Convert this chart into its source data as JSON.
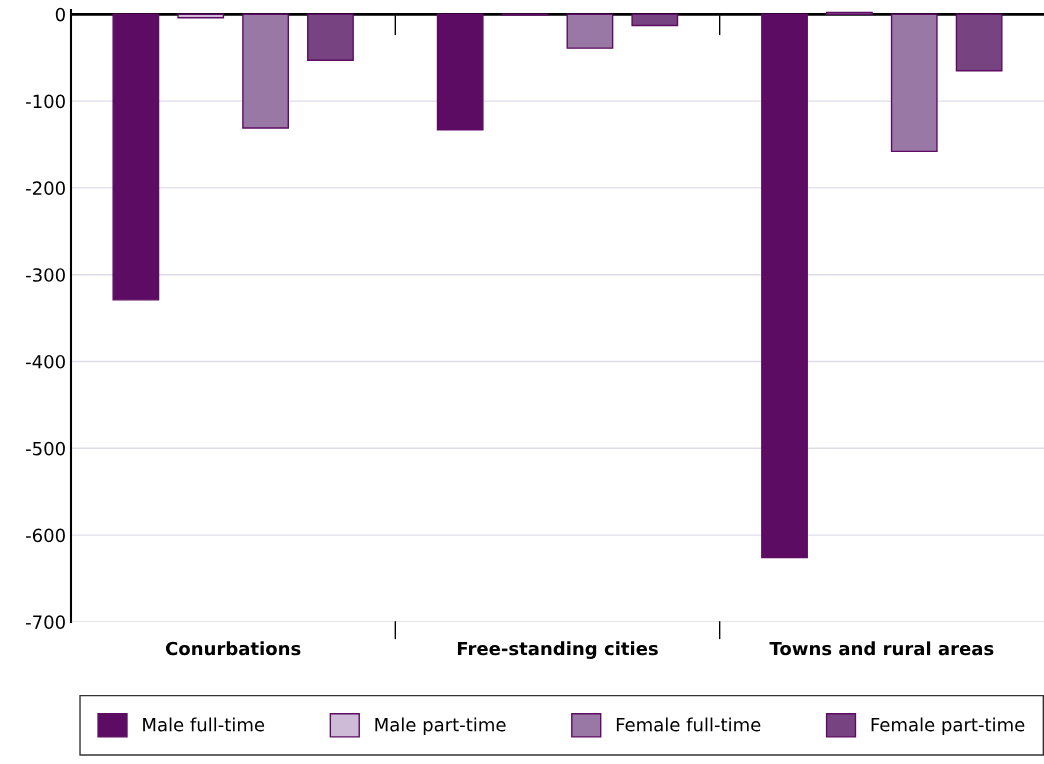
{
  "chart_data": {
    "type": "bar",
    "categories": [
      "Conurbations",
      "Free-standing cities",
      "Towns and rural areas"
    ],
    "series": [
      {
        "name": "Male full-time",
        "color": "#5c0c62",
        "values": [
          -329,
          -133,
          -626
        ]
      },
      {
        "name": "Male part-time",
        "color": "#cdbbd7",
        "values": [
          -4,
          -1,
          2
        ]
      },
      {
        "name": "Female full-time",
        "color": "#9a78a6",
        "values": [
          -131,
          -39,
          -158
        ]
      },
      {
        "name": "Female part-time",
        "color": "#774381",
        "values": [
          -53,
          -13,
          -65
        ]
      }
    ],
    "ylim": [
      -700,
      5
    ],
    "yticks": [
      -700,
      -600,
      -500,
      -400,
      -300,
      -200,
      -100,
      0
    ],
    "grid": "y",
    "legend": "bottom"
  }
}
